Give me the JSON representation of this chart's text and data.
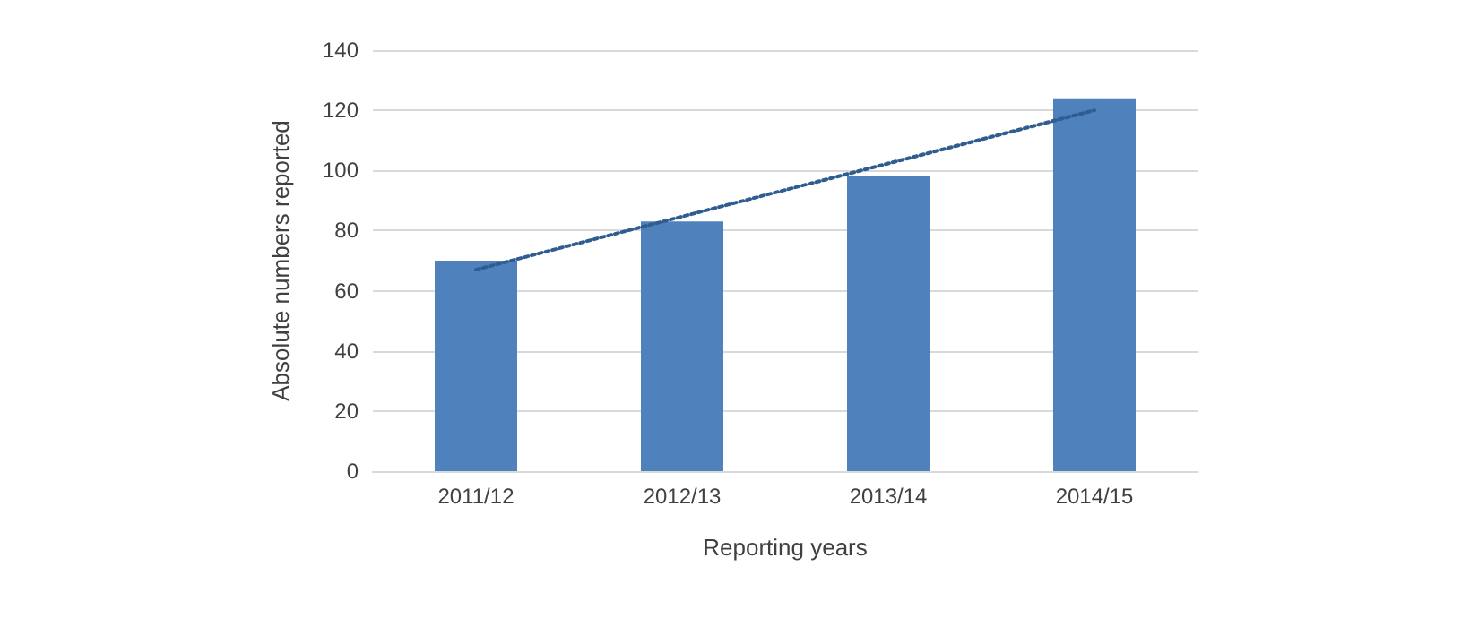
{
  "chart_data": {
    "type": "bar",
    "xlabel": "Reporting years",
    "ylabel": "Absolute numbers reported",
    "categories": [
      "2011/12",
      "2012/13",
      "2013/14",
      "2014/15"
    ],
    "series": [
      {
        "color": "#4f81bd",
        "values": [
          70,
          83,
          98,
          124
        ]
      },
      {
        "type": "line",
        "color": "#2f5d8f",
        "x": [
          "2011/12",
          "2014/15"
        ],
        "values": [
          67,
          120
        ],
        "line_style": "dotted"
      }
    ],
    "ylim": [
      0,
      140
    ],
    "yticks": [
      0,
      20,
      40,
      60,
      80,
      100,
      120,
      140
    ],
    "grid": "y"
  }
}
